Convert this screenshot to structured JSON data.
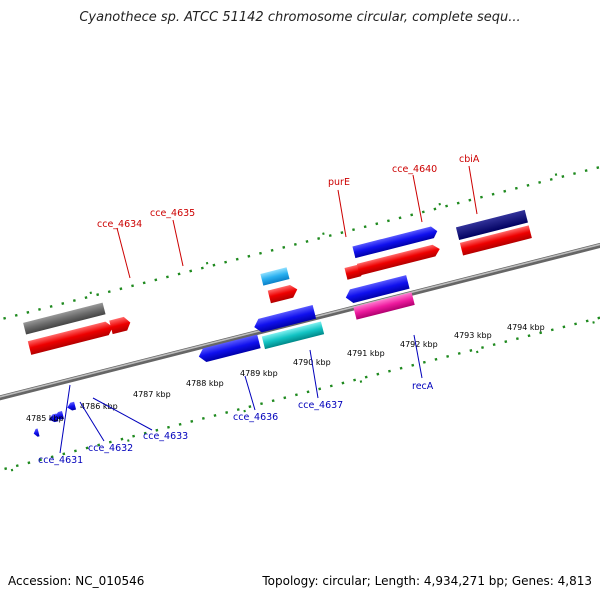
{
  "title": "Cyanothece sp. ATCC 51142 chromosome circular, complete sequ...",
  "footer": {
    "accession": "Accession: NC_010546",
    "summary": "Topology: circular; Length: 4,934,271 bp; Genes: 4,813"
  },
  "colors": {
    "forward_label": "#cc0000",
    "reverse_label": "#0000bb",
    "backbone": "#888888",
    "tick": "#1f8a1f"
  },
  "scale_labels": [
    "4785 kbp",
    "4786 kbp",
    "4787 kbp",
    "4788 kbp",
    "4789 kbp",
    "4790 kbp",
    "4791 kbp",
    "4792 kbp",
    "4793 kbp",
    "4794 kbp"
  ],
  "forward_gene_labels": [
    "cce_4634",
    "cce_4635",
    "purE",
    "cce_4640",
    "cbiA"
  ],
  "reverse_gene_labels": [
    "cce_4631",
    "cce_4632",
    "cce_4633",
    "cce_4636",
    "cce_4637",
    "recA"
  ]
}
